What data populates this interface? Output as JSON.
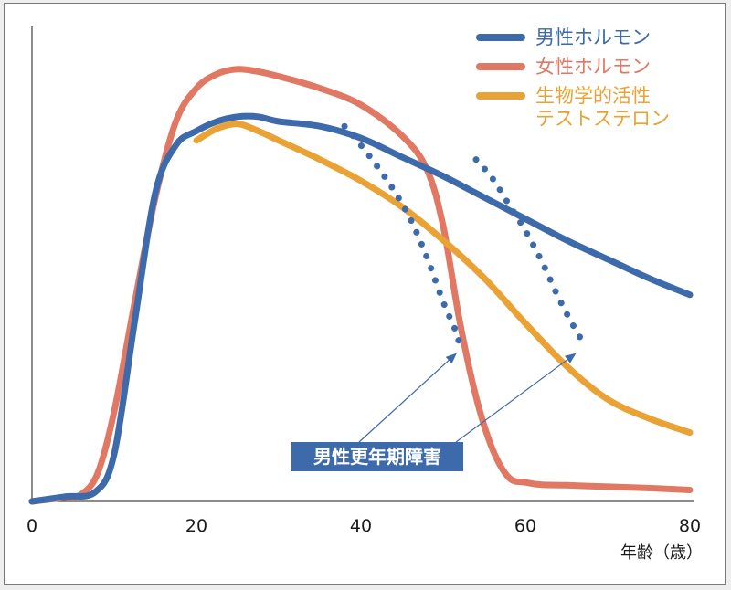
{
  "chart_data": {
    "type": "line",
    "title": "",
    "xlabel": "年齢（歳）",
    "ylabel": "",
    "xlim": [
      0,
      80
    ],
    "ylim": [
      0,
      100
    ],
    "xticks": [
      0,
      20,
      40,
      60,
      80
    ],
    "grid": false,
    "legend_position": "top-right",
    "series": [
      {
        "name": "男性ホルモン",
        "color": "#3d6aaa",
        "style": "solid",
        "x": [
          0,
          4,
          7.7,
          10,
          12.5,
          15,
          17.5,
          20,
          22.5,
          25,
          27.5,
          30,
          35,
          40,
          45,
          50,
          55,
          60,
          65,
          70,
          75,
          80
        ],
        "y": [
          0,
          1,
          2,
          10,
          38,
          65,
          75,
          78,
          80,
          81,
          81,
          80,
          79,
          76.5,
          72.5,
          68.5,
          64,
          59.5,
          55,
          51,
          47,
          43.5
        ]
      },
      {
        "name": "女性ホルモン",
        "color": "#e07864",
        "style": "solid",
        "x": [
          0,
          4,
          6,
          8,
          10,
          12.5,
          15,
          17.5,
          20,
          22.5,
          25,
          27.5,
          30,
          35,
          40,
          45,
          48,
          50,
          52,
          54,
          56,
          58,
          60,
          62,
          65,
          70,
          75,
          80
        ],
        "y": [
          0,
          0.8,
          1.5,
          6,
          19,
          42,
          64,
          80,
          87,
          90,
          91,
          90.5,
          89.5,
          87,
          83.5,
          77,
          70,
          58,
          38,
          22,
          11,
          5,
          4,
          3.5,
          3.4,
          3.1,
          2.8,
          2.4
        ]
      },
      {
        "name": "生物学的活性\nテストステロン",
        "color": "#e9a233",
        "style": "solid",
        "x": [
          20,
          22.5,
          25,
          27.5,
          30,
          35,
          40,
          45,
          50,
          55,
          60,
          65,
          70,
          75,
          80
        ],
        "y": [
          76,
          78.5,
          79.5,
          78,
          76,
          72,
          67.5,
          62,
          55,
          47,
          37.5,
          28.5,
          21.5,
          17.5,
          14.5
        ]
      },
      {
        "name": "",
        "color": "#3d6aaa",
        "style": "dotted",
        "x": [
          38,
          40,
          42,
          44,
          46,
          48,
          50,
          51.5,
          52
        ],
        "y": [
          79,
          75,
          70.5,
          65.5,
          59.5,
          51.5,
          42,
          36,
          33
        ]
      },
      {
        "name": "",
        "color": "#3d6aaa",
        "style": "dotted",
        "x": [
          54,
          56,
          58,
          60,
          62,
          64,
          65.5,
          66.5,
          67
        ],
        "y": [
          72,
          68,
          62.5,
          57,
          50.5,
          43,
          38,
          35,
          33
        ]
      }
    ],
    "annotation": {
      "text": "男性更年期障害",
      "box_color": "#3d6aaa",
      "text_color": "#ffffff",
      "arrow_targets": [
        [
          51.5,
          31
        ],
        [
          66,
          31
        ]
      ]
    }
  }
}
